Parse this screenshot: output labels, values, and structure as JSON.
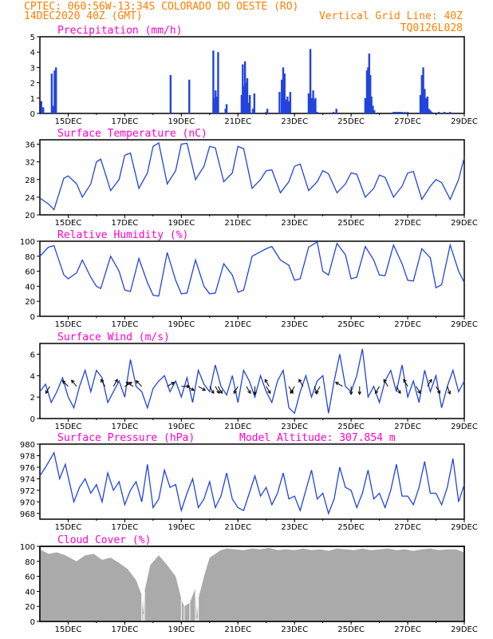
{
  "header": {
    "line1": "CPTEC:  060:56W-13:34S  COLORADO DO OESTE (RO)",
    "line2_left": "14DEC2020 40Z (GMT)",
    "line2_right": "Vertical Grid Line: 40Z",
    "line3_right": "TQ0126L028"
  },
  "colors": {
    "header": "#ff7f00",
    "panel_title": "#ff00cc",
    "series": "#2244dd",
    "cloud": "#aaaaaa",
    "arrows": "#000000"
  },
  "chart_data": [
    {
      "type": "bar",
      "title": "Precipitation (mm/h)",
      "ylim": [
        0,
        5
      ],
      "yticks": [
        "0",
        "1",
        "2",
        "3",
        "4",
        "5"
      ],
      "xlim": [
        14.0,
        29.0
      ],
      "xticks": [
        "15DEC",
        "17DEC",
        "19DEC",
        "21DEC",
        "23DEC",
        "25DEC",
        "27DEC",
        "29DEC"
      ],
      "x": [
        14.05,
        14.12,
        14.42,
        14.48,
        14.52,
        14.57,
        18.62,
        19.28,
        20.13,
        20.17,
        20.21,
        20.25,
        20.3,
        20.56,
        20.6,
        21.13,
        21.17,
        21.2,
        21.25,
        21.29,
        21.33,
        21.38,
        21.42,
        21.53,
        21.58,
        22.0,
        22.04,
        22.47,
        22.55,
        22.6,
        22.65,
        22.7,
        22.75,
        22.8,
        22.85,
        23.5,
        23.56,
        23.62,
        23.66,
        23.7,
        23.74,
        23.8,
        24.38,
        24.48,
        25.5,
        25.56,
        25.6,
        25.64,
        25.68,
        25.72,
        25.77,
        25.82,
        26.5,
        26.55,
        26.6,
        26.65,
        26.7,
        26.75,
        26.8,
        26.9,
        27.0,
        27.45,
        27.5,
        27.55,
        27.6,
        27.65,
        27.7,
        27.75,
        27.8,
        27.85,
        28.1,
        28.3,
        28.5
      ],
      "values": [
        0.8,
        0.4,
        2.6,
        0.5,
        2.8,
        3.0,
        2.5,
        2.2,
        4.1,
        1.0,
        1.5,
        1.1,
        4.0,
        0.3,
        0.6,
        1.2,
        3.2,
        1.8,
        3.4,
        2.0,
        2.3,
        0.7,
        1.2,
        0.3,
        1.3,
        0.1,
        0.3,
        1.4,
        2.2,
        3.0,
        2.6,
        0.9,
        1.1,
        0.8,
        1.4,
        1.3,
        4.2,
        1.0,
        1.5,
        0.9,
        1.0,
        0.1,
        0.1,
        0.3,
        1.0,
        2.8,
        3.0,
        3.9,
        2.5,
        1.1,
        0.5,
        0.2,
        0.1,
        0.1,
        0.1,
        0.1,
        0.1,
        0.1,
        0.1,
        0.1,
        0.1,
        1.2,
        2.5,
        3.0,
        1.6,
        1.0,
        1.1,
        0.3,
        0.2,
        0.1,
        0.1,
        0.1,
        0.1
      ]
    },
    {
      "type": "line",
      "title": "Surface Temperature (nC)",
      "ylim": [
        20,
        37
      ],
      "yticks": [
        "20",
        "24",
        "28",
        "32",
        "36"
      ],
      "xlim": [
        14.0,
        29.0
      ],
      "xticks": [
        "15DEC",
        "17DEC",
        "19DEC",
        "21DEC",
        "23DEC",
        "25DEC",
        "27DEC",
        "29DEC"
      ],
      "x": [
        14.0,
        14.3,
        14.5,
        14.85,
        15.0,
        15.3,
        15.5,
        15.8,
        16.0,
        16.15,
        16.5,
        16.8,
        17.0,
        17.2,
        17.5,
        17.8,
        18.0,
        18.2,
        18.5,
        18.8,
        19.0,
        19.2,
        19.5,
        19.8,
        20.0,
        20.2,
        20.5,
        20.8,
        21.0,
        21.2,
        21.5,
        21.8,
        22.0,
        22.2,
        22.5,
        22.8,
        23.0,
        23.2,
        23.5,
        23.8,
        24.0,
        24.2,
        24.5,
        24.8,
        25.0,
        25.2,
        25.5,
        25.8,
        26.0,
        26.2,
        26.5,
        26.8,
        27.0,
        27.2,
        27.5,
        27.8,
        28.0,
        28.2,
        28.5,
        28.8,
        29.0
      ],
      "values": [
        23.8,
        22.5,
        21.2,
        28.3,
        28.8,
        27.0,
        24.0,
        27.0,
        32.0,
        32.6,
        25.5,
        28.0,
        33.5,
        34.0,
        26.0,
        29.5,
        35.5,
        36.3,
        27.0,
        30.0,
        36.0,
        36.2,
        28.0,
        31.0,
        35.5,
        35.2,
        27.5,
        29.5,
        35.5,
        35.0,
        26.0,
        28.0,
        30.0,
        30.2,
        25.0,
        27.5,
        31.0,
        31.5,
        25.5,
        27.5,
        30.0,
        29.3,
        25.0,
        27.0,
        29.5,
        29.2,
        24.0,
        26.0,
        29.0,
        28.5,
        24.0,
        26.5,
        29.5,
        29.8,
        23.5,
        26.5,
        28.0,
        27.3,
        23.5,
        28.0,
        33.0
      ]
    },
    {
      "type": "line",
      "title": "Relative Humidity (%)",
      "ylim": [
        0,
        100
      ],
      "yticks": [
        "0",
        "20",
        "40",
        "60",
        "80",
        "100"
      ],
      "xlim": [
        14.0,
        29.0
      ],
      "xticks": [
        "15DEC",
        "17DEC",
        "19DEC",
        "21DEC",
        "23DEC",
        "25DEC",
        "27DEC",
        "29DEC"
      ],
      "x": [
        14.0,
        14.3,
        14.5,
        14.85,
        15.0,
        15.3,
        15.5,
        15.8,
        16.0,
        16.15,
        16.5,
        16.8,
        17.0,
        17.2,
        17.5,
        17.8,
        18.0,
        18.2,
        18.5,
        18.8,
        19.0,
        19.2,
        19.5,
        19.8,
        20.0,
        20.2,
        20.5,
        20.8,
        21.0,
        21.2,
        21.5,
        21.8,
        22.0,
        22.2,
        22.5,
        22.8,
        23.0,
        23.2,
        23.5,
        23.8,
        24.0,
        24.2,
        24.5,
        24.8,
        25.0,
        25.2,
        25.5,
        25.8,
        26.0,
        26.2,
        26.5,
        26.8,
        27.0,
        27.2,
        27.5,
        27.8,
        28.0,
        28.2,
        28.5,
        28.8,
        29.0
      ],
      "values": [
        80,
        92,
        94,
        55,
        50,
        58,
        75,
        52,
        40,
        37,
        80,
        60,
        35,
        33,
        77,
        45,
        28,
        27,
        85,
        48,
        30,
        31,
        75,
        40,
        30,
        31,
        70,
        55,
        32,
        35,
        80,
        86,
        90,
        93,
        75,
        68,
        48,
        50,
        92,
        99,
        60,
        55,
        97,
        82,
        50,
        52,
        93,
        75,
        55,
        54,
        95,
        70,
        48,
        47,
        90,
        78,
        38,
        42,
        95,
        60,
        45
      ]
    },
    {
      "type": "line",
      "title": "Surface Wind (m/s)",
      "ylim": [
        0,
        7
      ],
      "yticks": [
        "0",
        "2",
        "4",
        "6"
      ],
      "xlim": [
        14.0,
        29.0
      ],
      "xticks": [
        "15DEC",
        "17DEC",
        "19DEC",
        "21DEC",
        "23DEC",
        "25DEC",
        "27DEC",
        "29DEC"
      ],
      "x": [
        14.0,
        14.2,
        14.4,
        14.6,
        14.8,
        15.0,
        15.2,
        15.4,
        15.6,
        15.8,
        16.0,
        16.2,
        16.4,
        16.6,
        16.8,
        17.0,
        17.2,
        17.4,
        17.6,
        17.8,
        18.0,
        18.2,
        18.4,
        18.6,
        18.8,
        19.0,
        19.2,
        19.4,
        19.6,
        19.8,
        20.0,
        20.2,
        20.4,
        20.6,
        20.8,
        21.0,
        21.2,
        21.4,
        21.6,
        21.8,
        22.0,
        22.2,
        22.4,
        22.6,
        22.8,
        23.0,
        23.2,
        23.4,
        23.6,
        23.8,
        24.0,
        24.2,
        24.4,
        24.6,
        24.8,
        25.0,
        25.2,
        25.4,
        25.6,
        25.8,
        26.0,
        26.2,
        26.4,
        26.6,
        26.8,
        27.0,
        27.2,
        27.4,
        27.6,
        27.8,
        28.0,
        28.2,
        28.4,
        28.6,
        28.8,
        29.0
      ],
      "values": [
        2.5,
        3.2,
        1.5,
        2.5,
        3.8,
        2.0,
        1.0,
        3.0,
        4.5,
        2.5,
        4.5,
        3.8,
        1.5,
        2.5,
        3.5,
        2.0,
        5.5,
        3.0,
        2.5,
        1.0,
        2.8,
        3.5,
        4.0,
        2.5,
        3.5,
        2.0,
        3.8,
        1.5,
        4.5,
        3.2,
        2.5,
        5.0,
        3.0,
        2.2,
        4.0,
        1.5,
        4.5,
        3.5,
        2.0,
        4.0,
        2.5,
        1.5,
        3.5,
        4.5,
        1.0,
        0.5,
        2.5,
        4.0,
        2.0,
        3.5,
        4.0,
        0.5,
        3.5,
        6.0,
        3.0,
        2.5,
        4.0,
        6.5,
        2.0,
        3.0,
        1.5,
        3.5,
        4.5,
        2.5,
        5.0,
        2.0,
        3.5,
        1.5,
        4.5,
        2.5,
        4.0,
        1.0,
        3.0,
        4.5,
        2.5,
        3.5
      ]
    },
    {
      "type": "line",
      "title": "Surface Pressure (hPa)",
      "annotation": "Model Altitude: 307.854 m",
      "ylim": [
        967,
        980
      ],
      "yticks": [
        "968",
        "970",
        "972",
        "974",
        "976",
        "978",
        "980"
      ],
      "xlim": [
        14.0,
        29.0
      ],
      "xticks": [
        "15DEC",
        "17DEC",
        "19DEC",
        "21DEC",
        "23DEC",
        "25DEC",
        "27DEC",
        "29DEC"
      ],
      "x": [
        14.0,
        14.2,
        14.5,
        14.7,
        14.9,
        15.2,
        15.4,
        15.6,
        15.8,
        16.0,
        16.2,
        16.4,
        16.6,
        16.8,
        17.0,
        17.2,
        17.4,
        17.6,
        17.8,
        18.0,
        18.2,
        18.4,
        18.6,
        18.8,
        19.0,
        19.2,
        19.4,
        19.6,
        19.8,
        20.0,
        20.2,
        20.4,
        20.6,
        20.8,
        21.0,
        21.2,
        21.4,
        21.6,
        21.8,
        22.0,
        22.2,
        22.4,
        22.6,
        22.8,
        23.0,
        23.2,
        23.4,
        23.6,
        23.8,
        24.0,
        24.2,
        24.4,
        24.6,
        24.8,
        25.0,
        25.2,
        25.4,
        25.6,
        25.8,
        26.0,
        26.2,
        26.4,
        26.6,
        26.8,
        27.0,
        27.2,
        27.4,
        27.6,
        27.8,
        28.0,
        28.2,
        28.4,
        28.6,
        28.8,
        29.0
      ],
      "values": [
        974.5,
        976.0,
        978.5,
        974.0,
        976.5,
        970.0,
        972.5,
        974.0,
        971.5,
        973.0,
        970.0,
        975.0,
        972.0,
        973.5,
        969.5,
        972.0,
        973.5,
        970.0,
        976.5,
        969.0,
        970.5,
        975.5,
        972.5,
        973.0,
        968.5,
        971.5,
        974.0,
        969.0,
        970.5,
        973.5,
        969.0,
        971.0,
        975.0,
        970.5,
        969.0,
        968.5,
        971.5,
        974.5,
        971.0,
        972.5,
        969.5,
        971.5,
        975.0,
        970.5,
        971.0,
        968.5,
        972.0,
        975.5,
        970.5,
        971.5,
        968.0,
        970.5,
        976.0,
        972.5,
        972.0,
        969.0,
        971.5,
        975.5,
        970.5,
        971.5,
        969.0,
        972.0,
        976.5,
        971.0,
        971.0,
        969.5,
        972.5,
        977.0,
        971.5,
        971.5,
        969.5,
        972.5,
        977.5,
        970.0,
        973.0
      ]
    },
    {
      "type": "area",
      "title": "Cloud Cover (%)",
      "ylim": [
        0,
        100
      ],
      "yticks": [
        "0",
        "20",
        "40",
        "60",
        "80",
        "100"
      ],
      "xlim": [
        14.0,
        29.0
      ],
      "xticks": [
        "15DEC",
        "17DEC",
        "19DEC",
        "21DEC",
        "23DEC",
        "25DEC",
        "27DEC",
        "29DEC"
      ],
      "x": [
        14.0,
        14.3,
        14.6,
        14.9,
        15.0,
        15.3,
        15.6,
        15.9,
        16.2,
        16.5,
        16.8,
        17.1,
        17.4,
        17.6,
        17.65,
        17.7,
        17.9,
        18.2,
        18.5,
        18.8,
        19.0,
        19.1,
        19.3,
        19.5,
        19.55,
        19.6,
        19.8,
        20.0,
        20.2,
        20.4,
        20.6,
        20.9,
        21.2,
        21.5,
        21.8,
        22.1,
        22.4,
        22.7,
        23.0,
        23.3,
        23.6,
        23.9,
        24.2,
        24.5,
        24.8,
        25.1,
        25.4,
        25.7,
        26.0,
        26.3,
        26.6,
        26.9,
        27.2,
        27.5,
        27.8,
        28.1,
        28.4,
        28.7,
        29.0
      ],
      "values": [
        96,
        90,
        92,
        88,
        86,
        80,
        88,
        90,
        82,
        85,
        78,
        70,
        55,
        35,
        10,
        40,
        75,
        88,
        75,
        60,
        30,
        20,
        25,
        45,
        5,
        30,
        60,
        85,
        90,
        95,
        97,
        96,
        95,
        97,
        96,
        98,
        95,
        96,
        95,
        97,
        95,
        96,
        94,
        97,
        96,
        95,
        97,
        95,
        96,
        97,
        95,
        96,
        94,
        96,
        97,
        95,
        96,
        96,
        92
      ]
    }
  ],
  "wind_arrows": [
    {
      "x": 14.35,
      "dir": 210
    },
    {
      "x": 15.0,
      "dir": 315
    },
    {
      "x": 15.3,
      "dir": 320
    },
    {
      "x": 16.3,
      "dir": 330
    },
    {
      "x": 16.6,
      "dir": 30
    },
    {
      "x": 17.0,
      "dir": 60
    },
    {
      "x": 17.3,
      "dir": 300
    },
    {
      "x": 17.6,
      "dir": 315
    },
    {
      "x": 18.5,
      "dir": 60
    },
    {
      "x": 19.0,
      "dir": 90
    },
    {
      "x": 19.2,
      "dir": 120
    },
    {
      "x": 19.6,
      "dir": 120
    },
    {
      "x": 20.0,
      "dir": 150
    },
    {
      "x": 20.2,
      "dir": 150
    },
    {
      "x": 20.3,
      "dir": 150
    },
    {
      "x": 21.0,
      "dir": 210
    },
    {
      "x": 21.3,
      "dir": 150
    },
    {
      "x": 21.6,
      "dir": 180
    },
    {
      "x": 22.0,
      "dir": 150
    },
    {
      "x": 22.1,
      "dir": 330
    },
    {
      "x": 22.8,
      "dir": 150
    },
    {
      "x": 23.0,
      "dir": 210
    },
    {
      "x": 23.3,
      "dir": 330
    },
    {
      "x": 23.7,
      "dir": 160
    },
    {
      "x": 23.9,
      "dir": 210
    },
    {
      "x": 24.7,
      "dir": 300
    },
    {
      "x": 25.0,
      "dir": 180
    },
    {
      "x": 25.3,
      "dir": 180
    },
    {
      "x": 26.0,
      "dir": 210
    },
    {
      "x": 26.3,
      "dir": 330
    },
    {
      "x": 26.6,
      "dir": 150
    },
    {
      "x": 27.0,
      "dir": 330
    },
    {
      "x": 27.3,
      "dir": 150
    },
    {
      "x": 27.7,
      "dir": 30
    },
    {
      "x": 28.0,
      "dir": 150
    },
    {
      "x": 28.4,
      "dir": 160
    }
  ]
}
